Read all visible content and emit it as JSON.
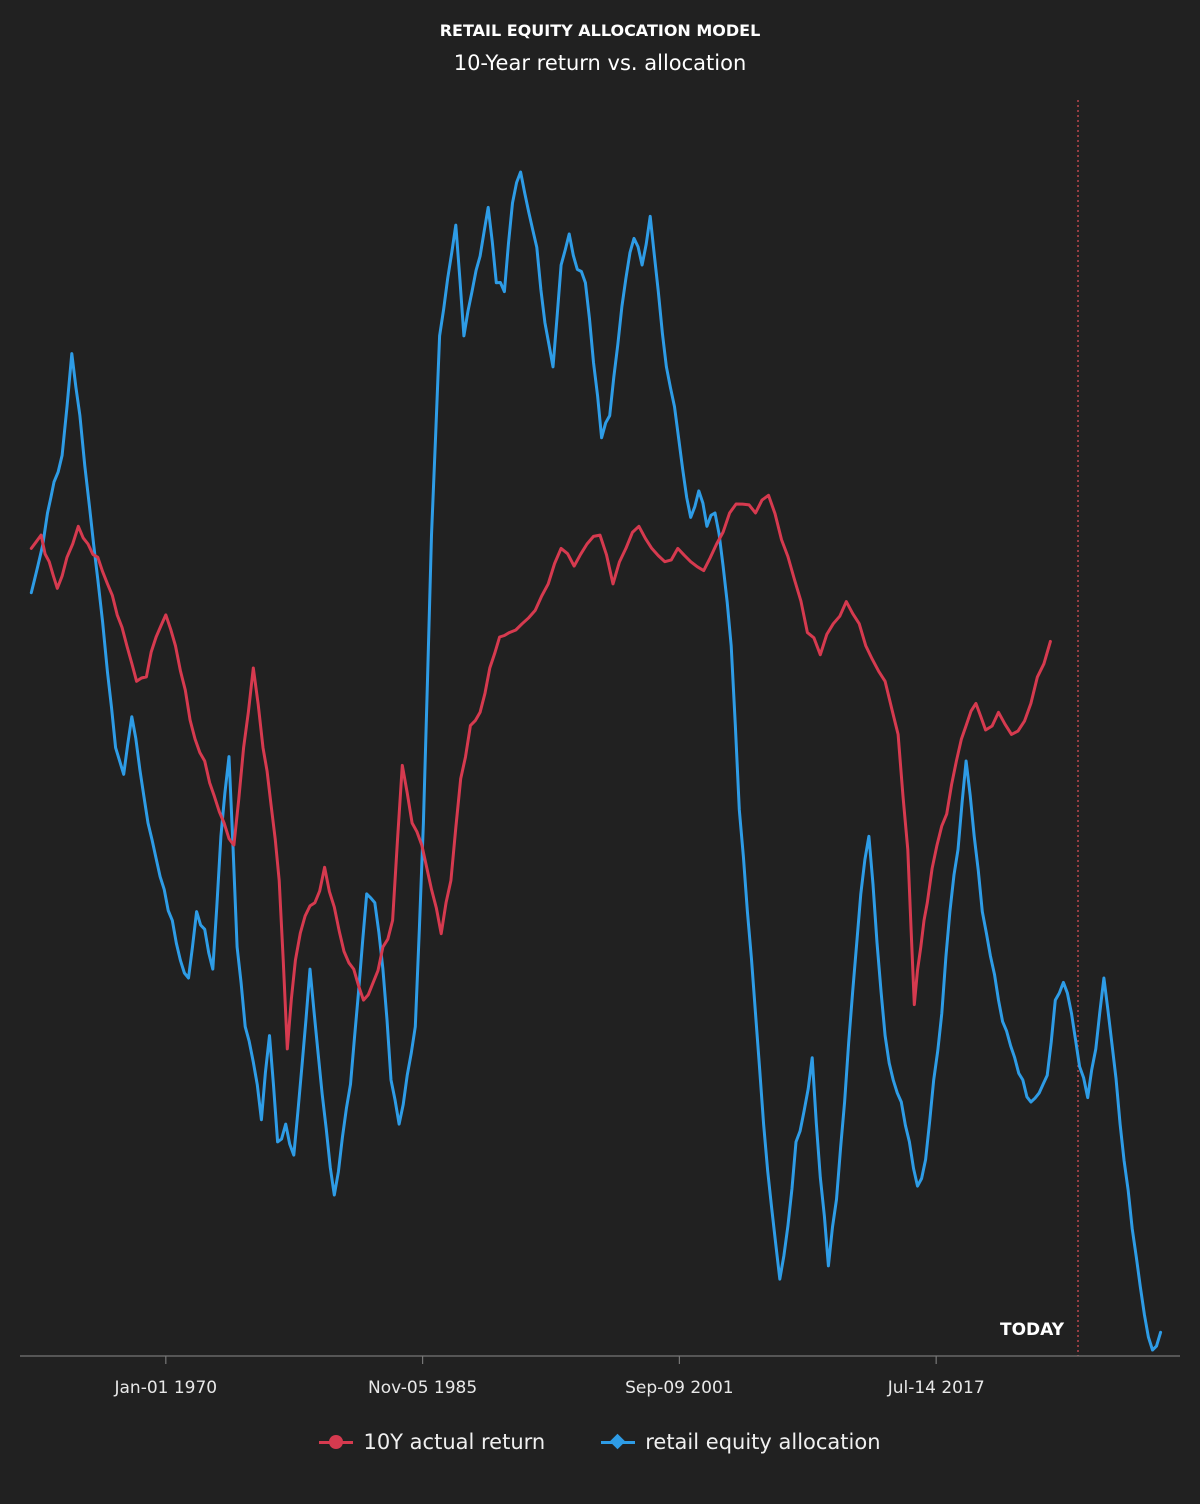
{
  "chart_data": {
    "type": "line",
    "title": "RETAIL EQUITY ALLOCATION MODEL",
    "subtitle": "10-Year return vs. allocation",
    "xlabel": "",
    "ylabel": "",
    "x_ticks": [
      "Jan-01 1970",
      "Nov-05 1985",
      "Sep-09 2001",
      "Jul-14 2017"
    ],
    "x_range": [
      1961.0,
      2032.6
    ],
    "y_range": [
      -6,
      22
    ],
    "grid": false,
    "legend_position": "bottom-center",
    "today_marker": {
      "label": "TODAY",
      "x": 2025.5
    },
    "series": [
      {
        "name": "10Y actual return",
        "color": "#d63a4f",
        "marker": "circle",
        "points": [
          [
            1961.7,
            12.1
          ],
          [
            1962.3,
            12.4
          ],
          [
            1962.8,
            11.8
          ],
          [
            1963.3,
            11.2
          ],
          [
            1963.9,
            11.9
          ],
          [
            1964.6,
            12.6
          ],
          [
            1965.2,
            12.2
          ],
          [
            1965.8,
            11.9
          ],
          [
            1966.4,
            11.3
          ],
          [
            1967.0,
            10.6
          ],
          [
            1967.6,
            9.9
          ],
          [
            1968.2,
            9.1
          ],
          [
            1968.8,
            9.2
          ],
          [
            1969.4,
            10.1
          ],
          [
            1970.0,
            10.6
          ],
          [
            1970.6,
            9.9
          ],
          [
            1971.2,
            8.9
          ],
          [
            1971.8,
            7.8
          ],
          [
            1972.4,
            7.3
          ],
          [
            1973.0,
            6.5
          ],
          [
            1973.6,
            5.9
          ],
          [
            1974.2,
            5.4
          ],
          [
            1974.8,
            7.6
          ],
          [
            1975.4,
            9.4
          ],
          [
            1976.0,
            7.6
          ],
          [
            1976.5,
            6.3
          ],
          [
            1977.0,
            4.6
          ],
          [
            1977.5,
            0.8
          ],
          [
            1978.0,
            2.8
          ],
          [
            1978.6,
            3.8
          ],
          [
            1979.2,
            4.1
          ],
          [
            1979.8,
            4.9
          ],
          [
            1980.4,
            4.0
          ],
          [
            1981.0,
            3.0
          ],
          [
            1981.6,
            2.6
          ],
          [
            1982.2,
            1.9
          ],
          [
            1982.8,
            2.3
          ],
          [
            1983.4,
            3.1
          ],
          [
            1984.0,
            3.7
          ],
          [
            1984.6,
            7.2
          ],
          [
            1985.2,
            5.9
          ],
          [
            1985.8,
            5.4
          ],
          [
            1986.4,
            4.4
          ],
          [
            1987.0,
            3.4
          ],
          [
            1987.6,
            4.6
          ],
          [
            1988.2,
            6.9
          ],
          [
            1988.8,
            8.1
          ],
          [
            1989.4,
            8.4
          ],
          [
            1990.0,
            9.4
          ],
          [
            1990.6,
            10.1
          ],
          [
            1991.2,
            10.2
          ],
          [
            1992.0,
            10.4
          ],
          [
            1992.8,
            10.7
          ],
          [
            1993.6,
            11.3
          ],
          [
            1994.4,
            12.1
          ],
          [
            1995.2,
            11.7
          ],
          [
            1996.0,
            12.2
          ],
          [
            1996.8,
            12.4
          ],
          [
            1997.6,
            11.3
          ],
          [
            1998.4,
            12.1
          ],
          [
            1999.2,
            12.6
          ],
          [
            2000.0,
            12.1
          ],
          [
            2000.8,
            11.8
          ],
          [
            2001.6,
            12.1
          ],
          [
            2002.4,
            11.8
          ],
          [
            2003.2,
            11.6
          ],
          [
            2004.0,
            12.2
          ],
          [
            2004.8,
            12.9
          ],
          [
            2005.6,
            13.1
          ],
          [
            2006.4,
            12.9
          ],
          [
            2007.2,
            13.3
          ],
          [
            2008.0,
            12.3
          ],
          [
            2008.8,
            11.4
          ],
          [
            2009.6,
            10.2
          ],
          [
            2010.4,
            9.7
          ],
          [
            2011.2,
            10.4
          ],
          [
            2012.0,
            10.9
          ],
          [
            2012.8,
            10.4
          ],
          [
            2013.6,
            9.6
          ],
          [
            2014.4,
            9.1
          ],
          [
            2015.2,
            7.9
          ],
          [
            2015.8,
            5.3
          ],
          [
            2016.2,
            1.8
          ],
          [
            2016.6,
            3.1
          ],
          [
            2017.0,
            4.1
          ],
          [
            2017.6,
            5.4
          ],
          [
            2018.2,
            6.1
          ],
          [
            2018.8,
            7.3
          ],
          [
            2019.4,
            8.1
          ],
          [
            2020.0,
            8.6
          ],
          [
            2020.6,
            8.0
          ],
          [
            2021.4,
            8.4
          ],
          [
            2022.2,
            7.9
          ],
          [
            2023.0,
            8.2
          ],
          [
            2023.8,
            9.2
          ],
          [
            2024.6,
            10.0
          ]
        ]
      },
      {
        "name": "retail equity allocation",
        "color": "#2e9ce6",
        "marker": "diamond",
        "points": [
          [
            1961.7,
            11.1
          ],
          [
            1962.1,
            11.7
          ],
          [
            1962.7,
            12.9
          ],
          [
            1963.1,
            13.6
          ],
          [
            1963.6,
            14.2
          ],
          [
            1964.2,
            16.5
          ],
          [
            1964.7,
            15.1
          ],
          [
            1965.3,
            13.0
          ],
          [
            1965.8,
            11.4
          ],
          [
            1966.4,
            9.3
          ],
          [
            1966.9,
            7.6
          ],
          [
            1967.4,
            7.0
          ],
          [
            1967.9,
            8.3
          ],
          [
            1968.4,
            7.1
          ],
          [
            1968.9,
            5.9
          ],
          [
            1969.4,
            5.1
          ],
          [
            1969.9,
            4.4
          ],
          [
            1970.4,
            3.7
          ],
          [
            1970.9,
            2.8
          ],
          [
            1971.4,
            2.4
          ],
          [
            1971.9,
            3.9
          ],
          [
            1972.4,
            3.5
          ],
          [
            1972.9,
            2.6
          ],
          [
            1973.4,
            5.6
          ],
          [
            1973.9,
            7.4
          ],
          [
            1974.4,
            3.1
          ],
          [
            1974.9,
            1.3
          ],
          [
            1975.4,
            0.5
          ],
          [
            1975.9,
            -0.8
          ],
          [
            1976.4,
            1.1
          ],
          [
            1976.9,
            -1.3
          ],
          [
            1977.4,
            -0.9
          ],
          [
            1977.9,
            -1.6
          ],
          [
            1978.4,
            0.4
          ],
          [
            1978.9,
            2.6
          ],
          [
            1979.4,
            0.7
          ],
          [
            1979.9,
            -1.0
          ],
          [
            1980.4,
            -2.5
          ],
          [
            1980.9,
            -1.2
          ],
          [
            1981.4,
            0.0
          ],
          [
            1981.9,
            2.1
          ],
          [
            1982.4,
            4.3
          ],
          [
            1982.9,
            4.1
          ],
          [
            1983.4,
            2.6
          ],
          [
            1983.9,
            0.1
          ],
          [
            1984.4,
            -0.9
          ],
          [
            1984.9,
            0.2
          ],
          [
            1985.4,
            1.3
          ],
          [
            1985.9,
            5.9
          ],
          [
            1986.4,
            12.4
          ],
          [
            1986.9,
            16.9
          ],
          [
            1987.4,
            18.2
          ],
          [
            1987.9,
            19.4
          ],
          [
            1988.4,
            16.9
          ],
          [
            1988.9,
            17.9
          ],
          [
            1989.4,
            18.7
          ],
          [
            1989.9,
            19.8
          ],
          [
            1990.4,
            18.1
          ],
          [
            1990.9,
            17.9
          ],
          [
            1991.4,
            19.9
          ],
          [
            1991.9,
            20.6
          ],
          [
            1992.4,
            19.7
          ],
          [
            1992.9,
            18.9
          ],
          [
            1993.4,
            17.2
          ],
          [
            1993.9,
            16.2
          ],
          [
            1994.4,
            18.5
          ],
          [
            1994.9,
            19.2
          ],
          [
            1995.4,
            18.4
          ],
          [
            1995.9,
            18.1
          ],
          [
            1996.4,
            16.3
          ],
          [
            1996.9,
            14.6
          ],
          [
            1997.4,
            15.1
          ],
          [
            1997.9,
            16.7
          ],
          [
            1998.4,
            18.2
          ],
          [
            1998.9,
            19.1
          ],
          [
            1999.4,
            18.5
          ],
          [
            1999.9,
            19.6
          ],
          [
            2000.4,
            17.9
          ],
          [
            2000.9,
            16.2
          ],
          [
            2001.4,
            15.3
          ],
          [
            2001.9,
            13.9
          ],
          [
            2002.4,
            12.8
          ],
          [
            2002.9,
            13.4
          ],
          [
            2003.4,
            12.6
          ],
          [
            2003.9,
            12.9
          ],
          [
            2004.4,
            11.7
          ],
          [
            2004.9,
            9.9
          ],
          [
            2005.4,
            6.2
          ],
          [
            2005.9,
            3.9
          ],
          [
            2006.4,
            1.6
          ],
          [
            2006.9,
            -0.9
          ],
          [
            2007.4,
            -2.8
          ],
          [
            2007.9,
            -4.4
          ],
          [
            2008.4,
            -3.2
          ],
          [
            2008.9,
            -1.3
          ],
          [
            2009.4,
            -0.6
          ],
          [
            2009.9,
            0.6
          ],
          [
            2010.4,
            -2.1
          ],
          [
            2010.9,
            -4.1
          ],
          [
            2011.4,
            -2.6
          ],
          [
            2011.9,
            -0.4
          ],
          [
            2012.4,
            2.1
          ],
          [
            2012.9,
            4.3
          ],
          [
            2013.4,
            5.6
          ],
          [
            2013.9,
            3.2
          ],
          [
            2014.4,
            1.1
          ],
          [
            2014.9,
            0.1
          ],
          [
            2015.4,
            -0.4
          ],
          [
            2015.9,
            -1.3
          ],
          [
            2016.4,
            -2.3
          ],
          [
            2016.9,
            -1.7
          ],
          [
            2017.4,
            0.1
          ],
          [
            2017.9,
            1.6
          ],
          [
            2018.4,
            3.9
          ],
          [
            2018.9,
            5.3
          ],
          [
            2019.4,
            7.3
          ],
          [
            2019.9,
            5.6
          ],
          [
            2020.4,
            3.9
          ],
          [
            2020.9,
            2.9
          ],
          [
            2021.4,
            1.9
          ],
          [
            2021.9,
            1.2
          ],
          [
            2022.4,
            0.6
          ],
          [
            2022.9,
            0.1
          ],
          [
            2023.4,
            -0.4
          ],
          [
            2023.9,
            -0.2
          ],
          [
            2024.4,
            0.2
          ],
          [
            2024.9,
            1.9
          ],
          [
            2025.4,
            2.3
          ],
          [
            2025.9,
            1.6
          ],
          [
            2026.4,
            0.4
          ],
          [
            2026.9,
            -0.3
          ],
          [
            2027.4,
            0.8
          ],
          [
            2027.9,
            2.4
          ],
          [
            2028.4,
            0.9
          ],
          [
            2028.9,
            -0.9
          ],
          [
            2029.4,
            -2.4
          ],
          [
            2029.9,
            -3.9
          ],
          [
            2030.4,
            -5.2
          ],
          [
            2030.9,
            -6.0
          ],
          [
            2031.4,
            -5.6
          ]
        ]
      }
    ]
  }
}
